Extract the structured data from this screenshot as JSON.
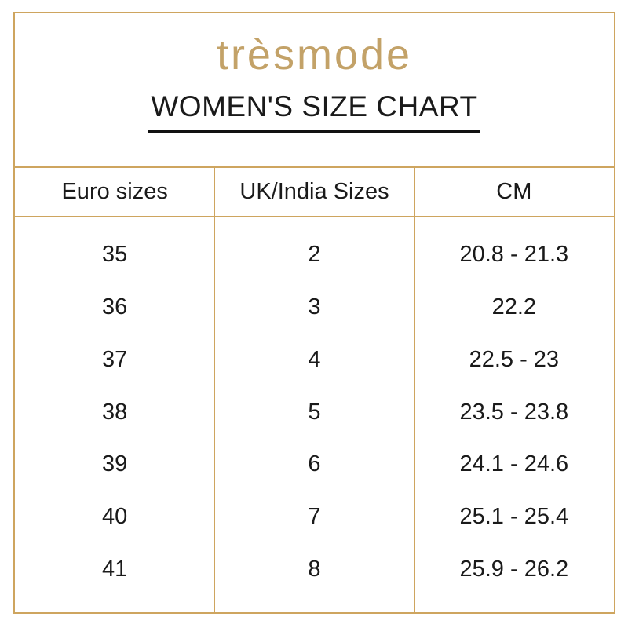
{
  "brand": {
    "logo_text": "trèsmode"
  },
  "page": {
    "title": "WOMEN'S SIZE CHART"
  },
  "table": {
    "columns": [
      "Euro sizes",
      "UK/India Sizes",
      "CM"
    ],
    "rows": [
      [
        "35",
        "2",
        "20.8 - 21.3"
      ],
      [
        "36",
        "3",
        "22.2"
      ],
      [
        "37",
        "4",
        "22.5 - 23"
      ],
      [
        "38",
        "5",
        "23.5 - 23.8"
      ],
      [
        "39",
        "6",
        "24.1 - 24.6"
      ],
      [
        "40",
        "7",
        "25.1 - 25.4"
      ],
      [
        "41",
        "8",
        "25.9 - 26.2"
      ]
    ]
  },
  "colors": {
    "border_gold": "#CEA55F",
    "logo_gold": "#C3A268",
    "text_black": "#1A1A1A"
  }
}
